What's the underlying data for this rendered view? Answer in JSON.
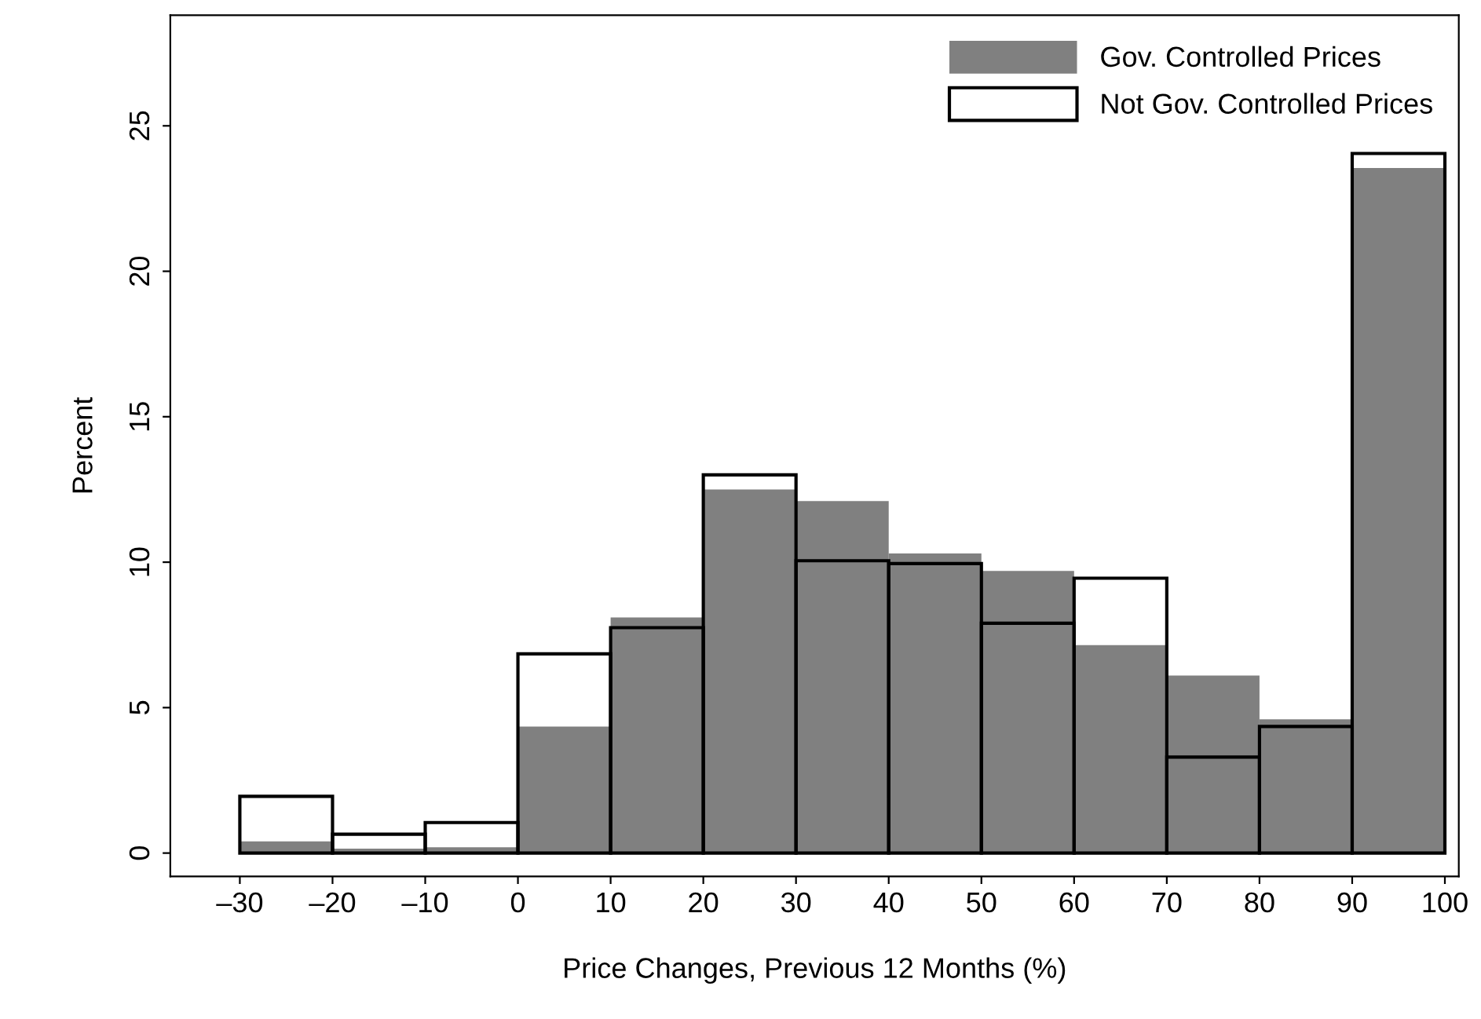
{
  "chart_data": {
    "type": "histogram",
    "xlabel": "Price Changes, Previous 12 Months (%)",
    "ylabel": "Percent",
    "bins": [
      -30,
      -20,
      -10,
      0,
      10,
      20,
      30,
      40,
      50,
      60,
      70,
      80,
      90,
      100
    ],
    "series": [
      {
        "name": "Gov. Controlled Prices",
        "color": "#808080",
        "values": [
          0.4,
          0.15,
          0.2,
          4.35,
          8.1,
          12.5,
          12.1,
          10.3,
          9.7,
          7.15,
          6.1,
          4.6,
          23.55
        ]
      },
      {
        "name": "Not Gov. Controlled Prices",
        "color": "#000000",
        "values": [
          1.95,
          0.65,
          1.05,
          6.85,
          7.75,
          13.0,
          10.05,
          9.95,
          7.9,
          9.45,
          3.3,
          4.35,
          24.05
        ]
      }
    ],
    "xlim": [
      -37.5,
      101.5
    ],
    "xticks": [
      {
        "value": -30,
        "label": "–30"
      },
      {
        "value": -20,
        "label": "–20"
      },
      {
        "value": -10,
        "label": "–10"
      },
      0,
      10,
      20,
      30,
      40,
      50,
      60,
      70,
      80,
      90,
      100
    ],
    "ylim": [
      -0.8,
      28.8
    ],
    "yticks": [
      0,
      5,
      10,
      15,
      20,
      25
    ],
    "grid": false,
    "legend": "top right"
  }
}
